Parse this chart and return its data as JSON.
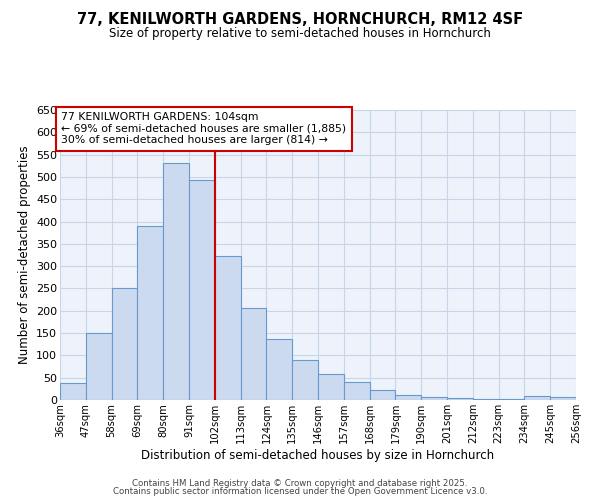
{
  "title": "77, KENILWORTH GARDENS, HORNCHURCH, RM12 4SF",
  "subtitle": "Size of property relative to semi-detached houses in Hornchurch",
  "xlabel": "Distribution of semi-detached houses by size in Hornchurch",
  "ylabel": "Number of semi-detached properties",
  "property_label": "77 KENILWORTH GARDENS: 104sqm",
  "pct_smaller": 69,
  "pct_larger": 30,
  "count_smaller": 1885,
  "count_larger": 814,
  "vline_x": 102,
  "bins": [
    36,
    47,
    58,
    69,
    80,
    91,
    102,
    113,
    124,
    135,
    146,
    157,
    168,
    179,
    190,
    201,
    212,
    223,
    234,
    245,
    256
  ],
  "counts": [
    38,
    150,
    251,
    390,
    531,
    494,
    322,
    206,
    136,
    90,
    59,
    41,
    22,
    12,
    7,
    4,
    3,
    2,
    8,
    6
  ],
  "bar_facecolor": "#ccdaf0",
  "bar_edgecolor": "#6699cc",
  "vline_color": "#cc0000",
  "grid_color": "#c8d4e8",
  "bg_color": "#eef3fb",
  "annotation_box_color": "#cc0000",
  "ylim": [
    0,
    650
  ],
  "tick_labels": [
    "36sqm",
    "47sqm",
    "58sqm",
    "69sqm",
    "80sqm",
    "91sqm",
    "102sqm",
    "113sqm",
    "124sqm",
    "135sqm",
    "146sqm",
    "157sqm",
    "168sqm",
    "179sqm",
    "190sqm",
    "201sqm",
    "212sqm",
    "223sqm",
    "234sqm",
    "245sqm",
    "256sqm"
  ],
  "yticks": [
    0,
    50,
    100,
    150,
    200,
    250,
    300,
    350,
    400,
    450,
    500,
    550,
    600,
    650
  ],
  "footer_line1": "Contains HM Land Registry data © Crown copyright and database right 2025.",
  "footer_line2": "Contains public sector information licensed under the Open Government Licence v3.0."
}
